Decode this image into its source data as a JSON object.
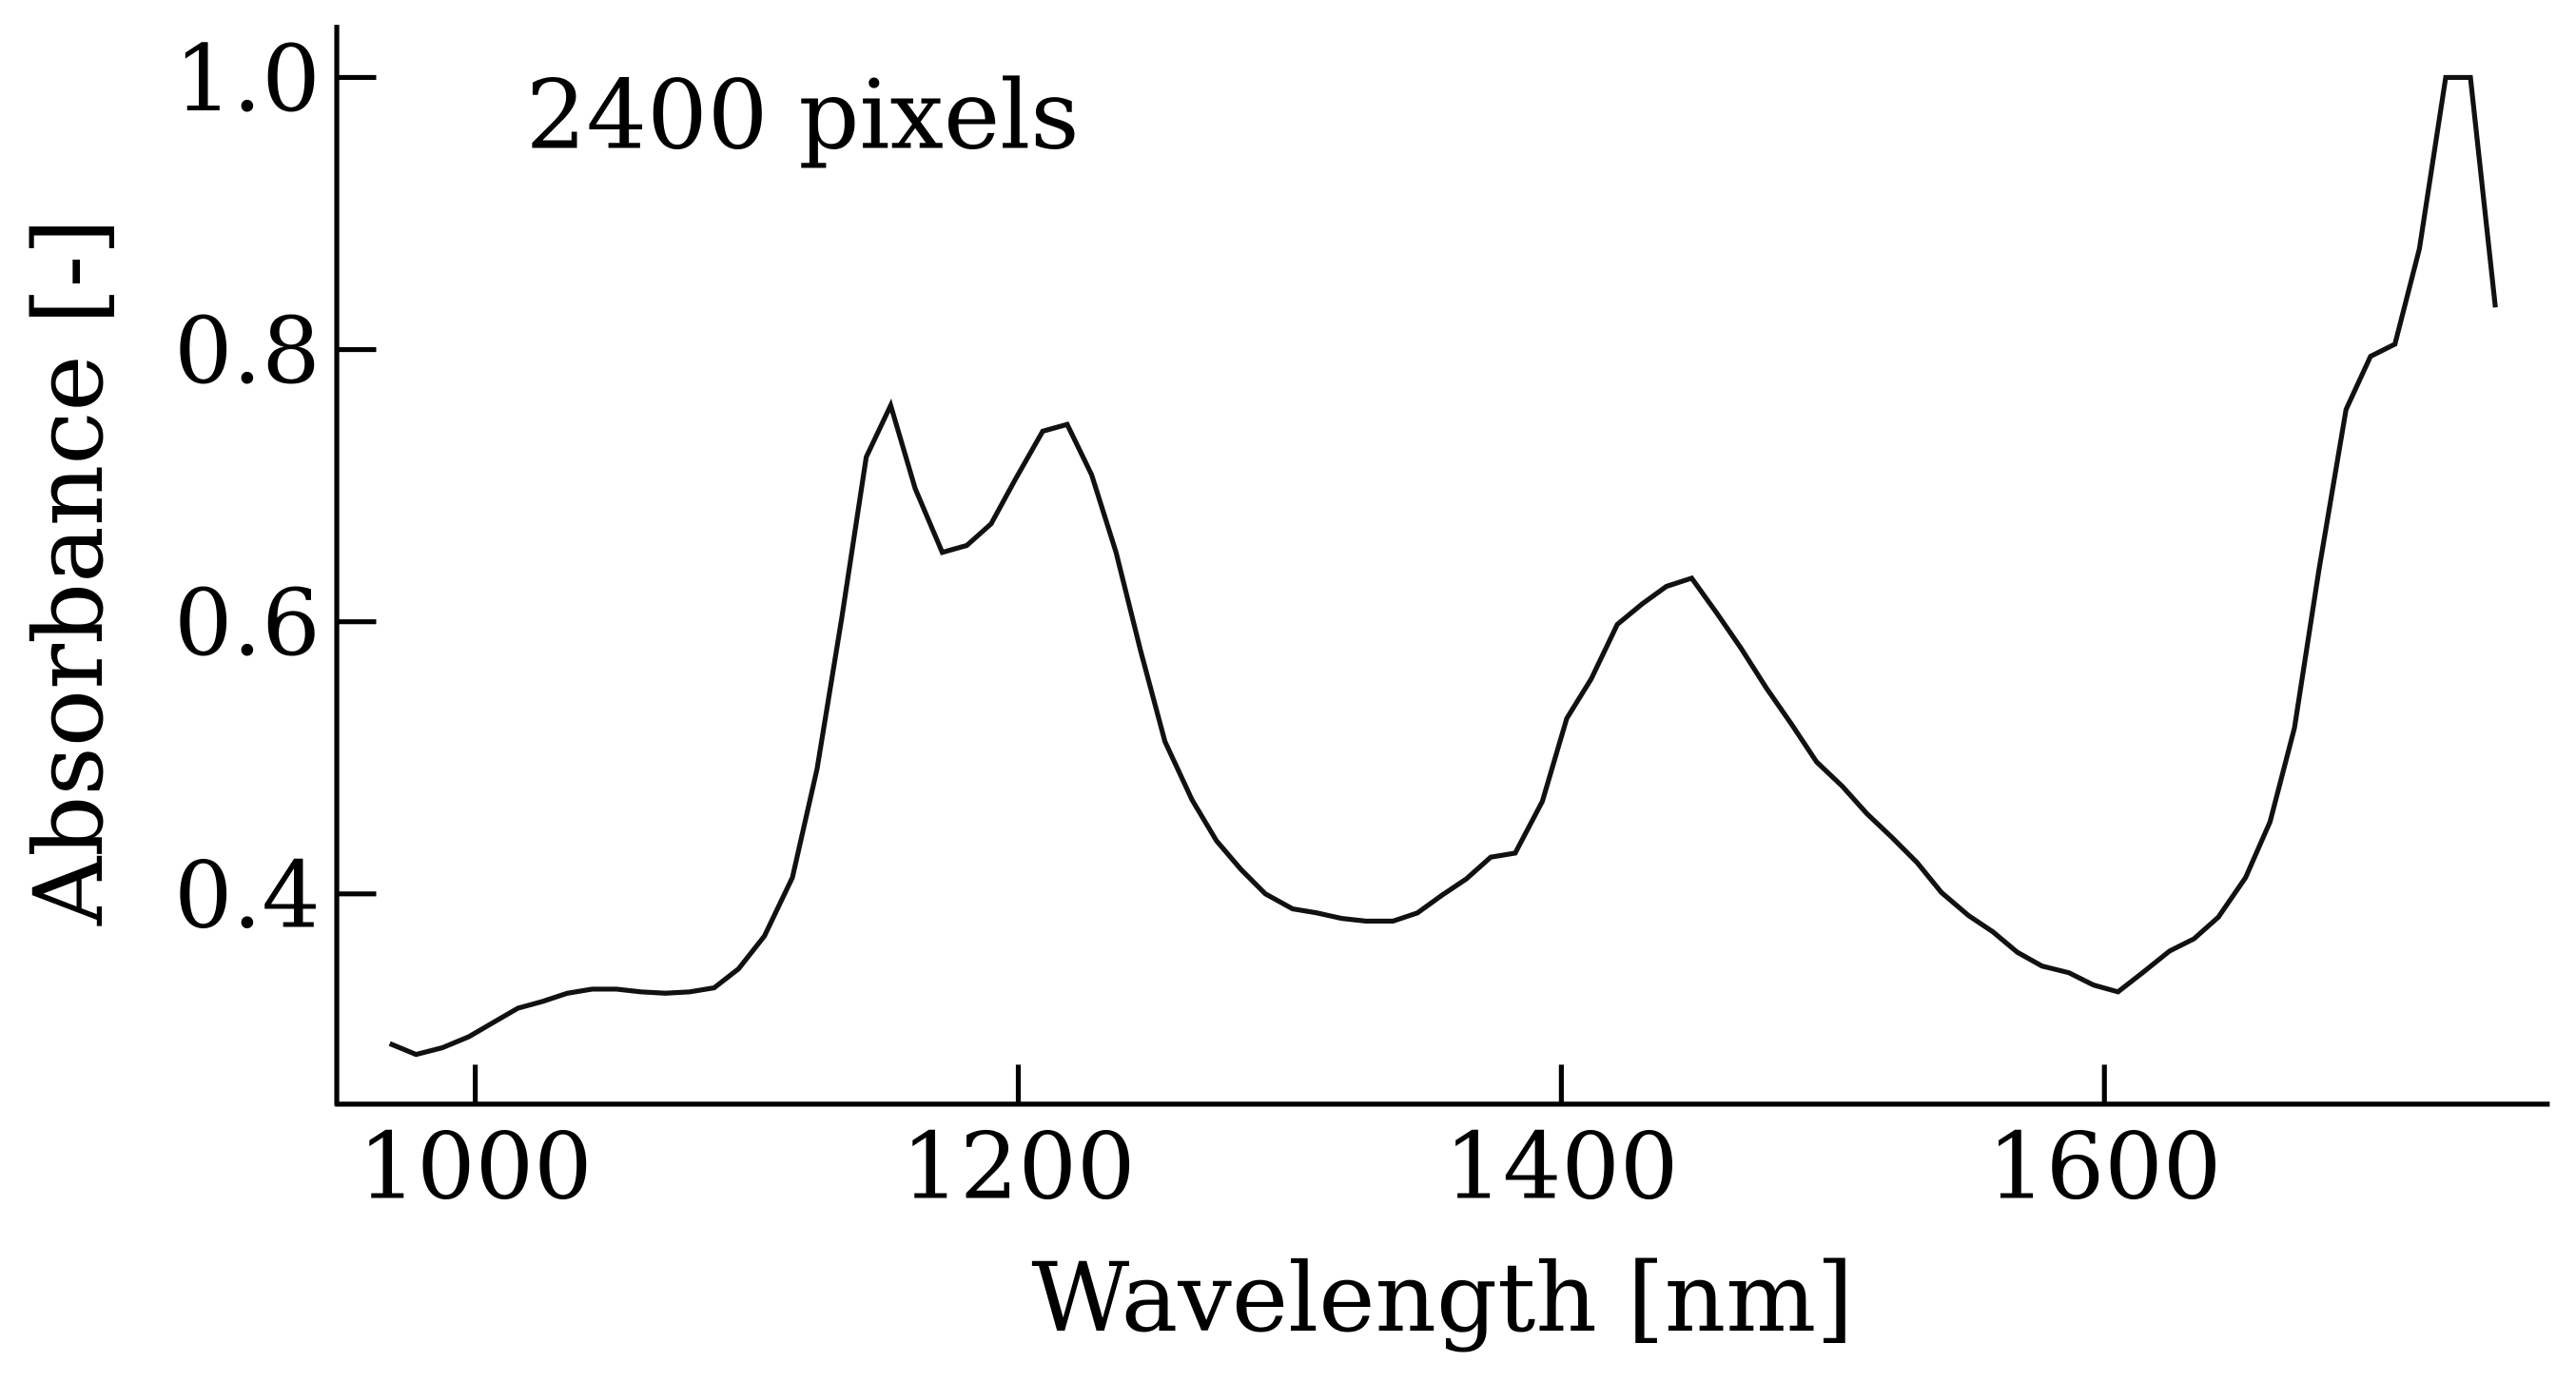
{
  "chart_data": {
    "type": "line",
    "annotation": "2400 pixels",
    "x_label": "Wavelength [nm]",
    "y_label": "Absorbance [-]",
    "x": [
      968.5,
      978.2,
      987.9,
      997.6,
      1015.7,
      1024.8,
      1033.9,
      1043,
      1052,
      1061,
      1070,
      1079,
      1088,
      1097,
      1106.5,
      1116.8,
      1125.9,
      1135,
      1144,
      1153,
      1162,
      1172,
      1181,
      1190,
      1199,
      1209,
      1218,
      1227,
      1236,
      1245,
      1254,
      1264,
      1273,
      1282,
      1291,
      1301,
      1310,
      1319,
      1328,
      1338,
      1347,
      1356,
      1365,
      1374,
      1383,
      1393,
      1402,
      1411,
      1420.6,
      1429.7,
      1438.7,
      1448,
      1457,
      1466,
      1475.6,
      1485,
      1494,
      1503.5,
      1512.5,
      1522,
      1531,
      1540,
      1550,
      1559,
      1568,
      1577,
      1587,
      1596,
      1605,
      1614,
      1624,
      1633,
      1642,
      1652,
      1661,
      1670,
      1679,
      1689,
      1698,
      1707,
      1716,
      1725.7,
      1734.8,
      1744
    ],
    "series": [
      {
        "color": "#111111",
        "values": [
          0.29,
          0.282,
          0.287,
          0.295,
          0.316,
          0.321,
          0.327,
          0.33,
          0.33,
          0.328,
          0.327,
          0.328,
          0.331,
          0.345,
          0.369,
          0.412,
          0.492,
          0.603,
          0.721,
          0.759,
          0.698,
          0.651,
          0.656,
          0.672,
          0.705,
          0.74,
          0.745,
          0.708,
          0.651,
          0.579,
          0.512,
          0.469,
          0.439,
          0.418,
          0.4,
          0.389,
          0.386,
          0.382,
          0.38,
          0.38,
          0.386,
          0.399,
          0.411,
          0.427,
          0.43,
          0.468,
          0.529,
          0.558,
          0.598,
          0.613,
          0.626,
          0.632,
          0.607,
          0.581,
          0.551,
          0.524,
          0.497,
          0.479,
          0.459,
          0.441,
          0.423,
          0.401,
          0.384,
          0.372,
          0.357,
          0.347,
          0.342,
          0.333,
          0.328,
          0.342,
          0.358,
          0.367,
          0.383,
          0.412,
          0.453,
          0.522,
          0.638,
          0.756,
          0.795,
          0.804,
          0.874,
          1.0,
          1.0,
          0.831
        ]
      }
    ],
    "xlim": [
      949,
      1764
    ],
    "ylim": [
      0.2455,
      1.0386
    ],
    "xticks": [
      1000,
      1200,
      1400,
      1600
    ],
    "yticks": [
      {
        "value": 0.4,
        "label": "0.4"
      },
      {
        "value": 0.6,
        "label": "0.6"
      },
      {
        "value": 0.8,
        "label": "0.8"
      },
      {
        "value": 1.0,
        "label": "1.0"
      }
    ]
  }
}
